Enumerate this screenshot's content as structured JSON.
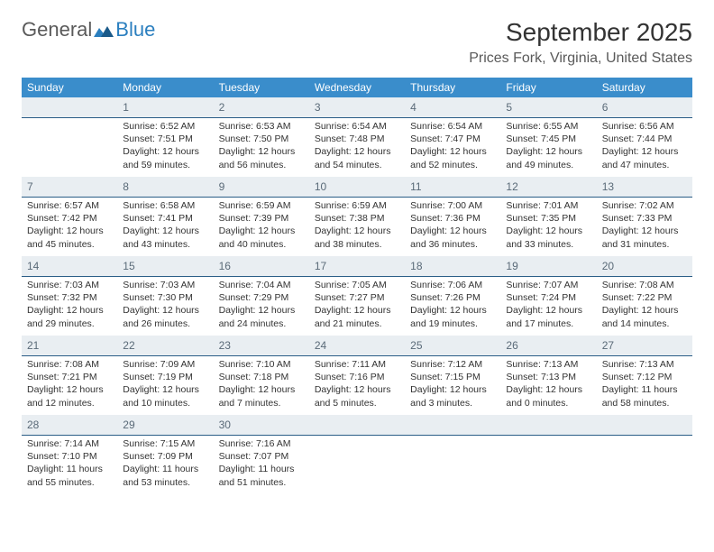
{
  "logo": {
    "text1": "General",
    "text2": "Blue",
    "mark_color": "#2b7fbf"
  },
  "title": "September 2025",
  "location": "Prices Fork, Virginia, United States",
  "colors": {
    "header_bg": "#3a8dcb",
    "header_text": "#ffffff",
    "date_bar_bg": "#e9eef2",
    "date_bar_border": "#2a5d87",
    "body_text": "#333333",
    "logo_gray": "#5a5a5a",
    "logo_blue": "#2b7fbf"
  },
  "layout": {
    "columns": 7,
    "rows": 5,
    "fontsize_body": 10.5,
    "fontsize_daynum": 12,
    "fontsize_dow": 12
  },
  "days_of_week": [
    "Sunday",
    "Monday",
    "Tuesday",
    "Wednesday",
    "Thursday",
    "Friday",
    "Saturday"
  ],
  "weeks": [
    [
      {
        "empty": true
      },
      {
        "n": "1",
        "sunrise": "Sunrise: 6:52 AM",
        "sunset": "Sunset: 7:51 PM",
        "daylight": "Daylight: 12 hours and 59 minutes."
      },
      {
        "n": "2",
        "sunrise": "Sunrise: 6:53 AM",
        "sunset": "Sunset: 7:50 PM",
        "daylight": "Daylight: 12 hours and 56 minutes."
      },
      {
        "n": "3",
        "sunrise": "Sunrise: 6:54 AM",
        "sunset": "Sunset: 7:48 PM",
        "daylight": "Daylight: 12 hours and 54 minutes."
      },
      {
        "n": "4",
        "sunrise": "Sunrise: 6:54 AM",
        "sunset": "Sunset: 7:47 PM",
        "daylight": "Daylight: 12 hours and 52 minutes."
      },
      {
        "n": "5",
        "sunrise": "Sunrise: 6:55 AM",
        "sunset": "Sunset: 7:45 PM",
        "daylight": "Daylight: 12 hours and 49 minutes."
      },
      {
        "n": "6",
        "sunrise": "Sunrise: 6:56 AM",
        "sunset": "Sunset: 7:44 PM",
        "daylight": "Daylight: 12 hours and 47 minutes."
      }
    ],
    [
      {
        "n": "7",
        "sunrise": "Sunrise: 6:57 AM",
        "sunset": "Sunset: 7:42 PM",
        "daylight": "Daylight: 12 hours and 45 minutes."
      },
      {
        "n": "8",
        "sunrise": "Sunrise: 6:58 AM",
        "sunset": "Sunset: 7:41 PM",
        "daylight": "Daylight: 12 hours and 43 minutes."
      },
      {
        "n": "9",
        "sunrise": "Sunrise: 6:59 AM",
        "sunset": "Sunset: 7:39 PM",
        "daylight": "Daylight: 12 hours and 40 minutes."
      },
      {
        "n": "10",
        "sunrise": "Sunrise: 6:59 AM",
        "sunset": "Sunset: 7:38 PM",
        "daylight": "Daylight: 12 hours and 38 minutes."
      },
      {
        "n": "11",
        "sunrise": "Sunrise: 7:00 AM",
        "sunset": "Sunset: 7:36 PM",
        "daylight": "Daylight: 12 hours and 36 minutes."
      },
      {
        "n": "12",
        "sunrise": "Sunrise: 7:01 AM",
        "sunset": "Sunset: 7:35 PM",
        "daylight": "Daylight: 12 hours and 33 minutes."
      },
      {
        "n": "13",
        "sunrise": "Sunrise: 7:02 AM",
        "sunset": "Sunset: 7:33 PM",
        "daylight": "Daylight: 12 hours and 31 minutes."
      }
    ],
    [
      {
        "n": "14",
        "sunrise": "Sunrise: 7:03 AM",
        "sunset": "Sunset: 7:32 PM",
        "daylight": "Daylight: 12 hours and 29 minutes."
      },
      {
        "n": "15",
        "sunrise": "Sunrise: 7:03 AM",
        "sunset": "Sunset: 7:30 PM",
        "daylight": "Daylight: 12 hours and 26 minutes."
      },
      {
        "n": "16",
        "sunrise": "Sunrise: 7:04 AM",
        "sunset": "Sunset: 7:29 PM",
        "daylight": "Daylight: 12 hours and 24 minutes."
      },
      {
        "n": "17",
        "sunrise": "Sunrise: 7:05 AM",
        "sunset": "Sunset: 7:27 PM",
        "daylight": "Daylight: 12 hours and 21 minutes."
      },
      {
        "n": "18",
        "sunrise": "Sunrise: 7:06 AM",
        "sunset": "Sunset: 7:26 PM",
        "daylight": "Daylight: 12 hours and 19 minutes."
      },
      {
        "n": "19",
        "sunrise": "Sunrise: 7:07 AM",
        "sunset": "Sunset: 7:24 PM",
        "daylight": "Daylight: 12 hours and 17 minutes."
      },
      {
        "n": "20",
        "sunrise": "Sunrise: 7:08 AM",
        "sunset": "Sunset: 7:22 PM",
        "daylight": "Daylight: 12 hours and 14 minutes."
      }
    ],
    [
      {
        "n": "21",
        "sunrise": "Sunrise: 7:08 AM",
        "sunset": "Sunset: 7:21 PM",
        "daylight": "Daylight: 12 hours and 12 minutes."
      },
      {
        "n": "22",
        "sunrise": "Sunrise: 7:09 AM",
        "sunset": "Sunset: 7:19 PM",
        "daylight": "Daylight: 12 hours and 10 minutes."
      },
      {
        "n": "23",
        "sunrise": "Sunrise: 7:10 AM",
        "sunset": "Sunset: 7:18 PM",
        "daylight": "Daylight: 12 hours and 7 minutes."
      },
      {
        "n": "24",
        "sunrise": "Sunrise: 7:11 AM",
        "sunset": "Sunset: 7:16 PM",
        "daylight": "Daylight: 12 hours and 5 minutes."
      },
      {
        "n": "25",
        "sunrise": "Sunrise: 7:12 AM",
        "sunset": "Sunset: 7:15 PM",
        "daylight": "Daylight: 12 hours and 3 minutes."
      },
      {
        "n": "26",
        "sunrise": "Sunrise: 7:13 AM",
        "sunset": "Sunset: 7:13 PM",
        "daylight": "Daylight: 12 hours and 0 minutes."
      },
      {
        "n": "27",
        "sunrise": "Sunrise: 7:13 AM",
        "sunset": "Sunset: 7:12 PM",
        "daylight": "Daylight: 11 hours and 58 minutes."
      }
    ],
    [
      {
        "n": "28",
        "sunrise": "Sunrise: 7:14 AM",
        "sunset": "Sunset: 7:10 PM",
        "daylight": "Daylight: 11 hours and 55 minutes."
      },
      {
        "n": "29",
        "sunrise": "Sunrise: 7:15 AM",
        "sunset": "Sunset: 7:09 PM",
        "daylight": "Daylight: 11 hours and 53 minutes."
      },
      {
        "n": "30",
        "sunrise": "Sunrise: 7:16 AM",
        "sunset": "Sunset: 7:07 PM",
        "daylight": "Daylight: 11 hours and 51 minutes."
      },
      {
        "empty": true
      },
      {
        "empty": true
      },
      {
        "empty": true
      },
      {
        "empty": true
      }
    ]
  ]
}
